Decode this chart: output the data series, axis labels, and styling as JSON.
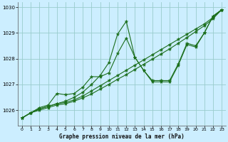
{
  "title": "Graphe pression niveau de la mer (hPa)",
  "bg_color": "#cceeff",
  "grid_color": "#99cccc",
  "line_color": "#1a6e1a",
  "marker_color": "#1a6e1a",
  "xlim": [
    -0.5,
    23.5
  ],
  "ylim": [
    1025.4,
    1030.2
  ],
  "yticks": [
    1026,
    1027,
    1028,
    1029,
    1030
  ],
  "xticks": [
    0,
    1,
    2,
    3,
    4,
    5,
    6,
    7,
    8,
    9,
    10,
    11,
    12,
    13,
    14,
    15,
    16,
    17,
    18,
    19,
    20,
    21,
    22,
    23
  ],
  "series": [
    {
      "x": [
        0,
        1,
        2,
        3,
        4,
        5,
        6,
        7,
        8,
        9,
        10,
        11,
        12,
        13,
        14,
        15,
        16,
        17,
        18,
        19,
        20,
        21,
        22,
        23
      ],
      "y": [
        1025.7,
        1025.9,
        1026.05,
        1026.15,
        1026.25,
        1026.35,
        1026.5,
        1026.7,
        1027.0,
        1027.35,
        1027.85,
        1028.95,
        1029.45,
        1028.05,
        1027.55,
        1027.1,
        1027.1,
        1027.1,
        1027.75,
        1028.55,
        1028.45,
        1029.0,
        1029.65,
        1029.9
      ]
    },
    {
      "x": [
        0,
        1,
        2,
        3,
        4,
        5,
        6,
        7,
        8,
        9,
        10,
        11,
        12,
        13,
        14,
        15,
        16,
        17,
        18,
        19,
        20,
        21,
        22,
        23
      ],
      "y": [
        1025.7,
        1025.9,
        1026.1,
        1026.2,
        1026.65,
        1026.6,
        1026.65,
        1026.9,
        1027.3,
        1027.3,
        1027.45,
        1028.2,
        1028.8,
        1028.05,
        1027.55,
        1027.15,
        1027.15,
        1027.15,
        1027.8,
        1028.6,
        1028.5,
        1029.0,
        1029.65,
        1029.9
      ]
    },
    {
      "x": [
        0,
        1,
        2,
        3,
        4,
        5,
        6,
        7,
        8,
        9,
        10,
        11,
        12,
        13,
        14,
        15,
        16,
        17,
        18,
        19,
        20,
        21,
        22,
        23
      ],
      "y": [
        1025.7,
        1025.9,
        1026.05,
        1026.15,
        1026.25,
        1026.3,
        1026.4,
        1026.55,
        1026.75,
        1026.95,
        1027.15,
        1027.35,
        1027.55,
        1027.75,
        1027.95,
        1028.15,
        1028.35,
        1028.55,
        1028.75,
        1028.95,
        1029.15,
        1029.35,
        1029.6,
        1029.9
      ]
    },
    {
      "x": [
        0,
        1,
        2,
        3,
        4,
        5,
        6,
        7,
        8,
        9,
        10,
        11,
        12,
        13,
        14,
        15,
        16,
        17,
        18,
        19,
        20,
        21,
        22,
        23
      ],
      "y": [
        1025.7,
        1025.9,
        1026.0,
        1026.1,
        1026.2,
        1026.25,
        1026.35,
        1026.48,
        1026.63,
        1026.82,
        1027.0,
        1027.2,
        1027.38,
        1027.58,
        1027.78,
        1027.98,
        1028.18,
        1028.38,
        1028.6,
        1028.82,
        1029.05,
        1029.28,
        1029.55,
        1029.9
      ]
    }
  ]
}
